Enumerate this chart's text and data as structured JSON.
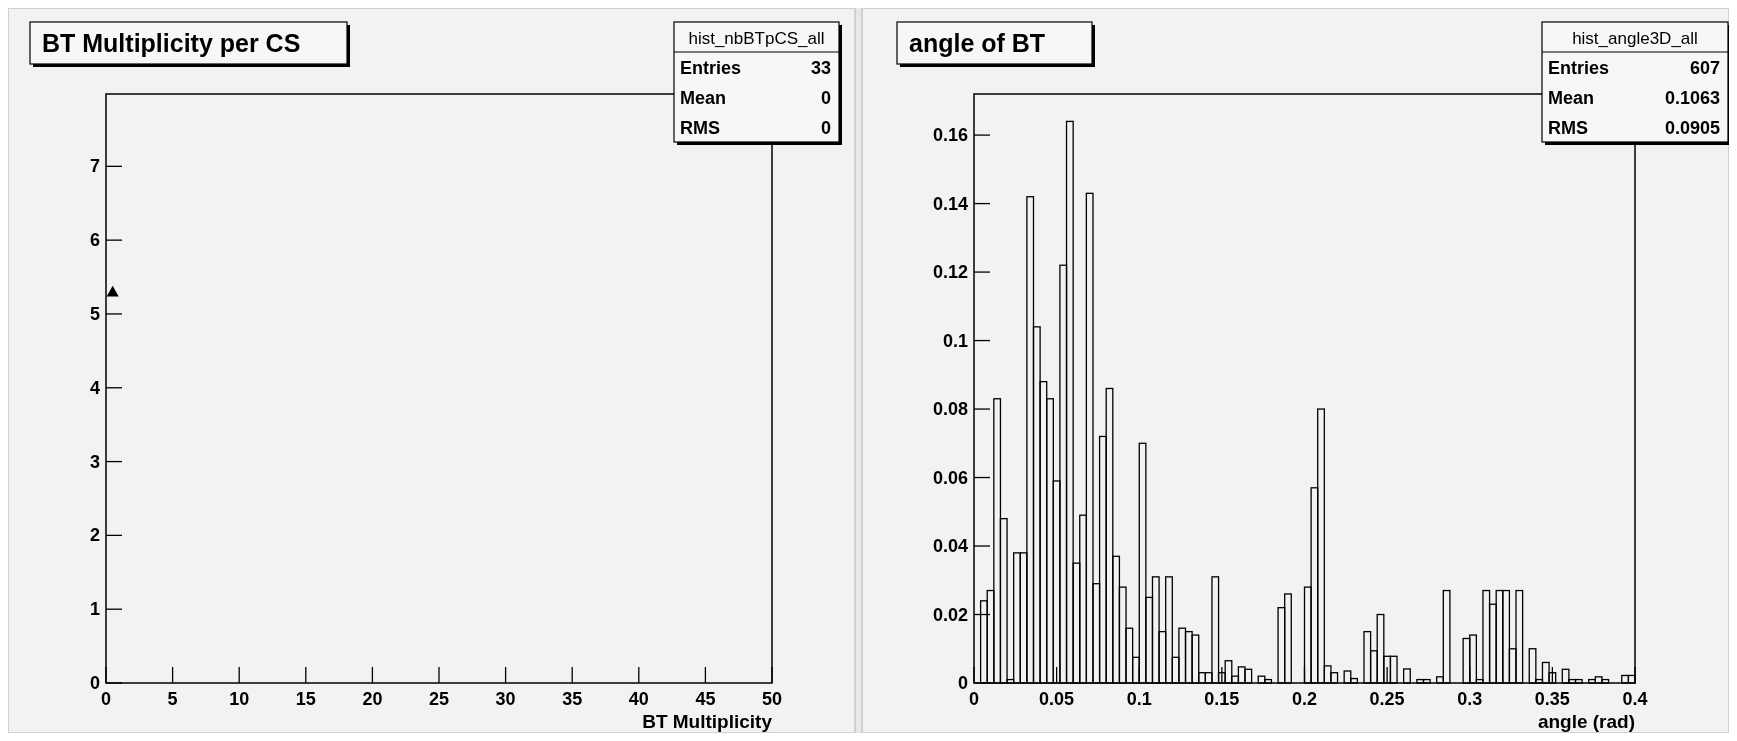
{
  "chart_data": [
    {
      "type": "scatter",
      "title": "BT Multiplicity per CS",
      "xlabel": "BT Multiplicity",
      "annotations": [
        "hist_nbBTpCS_all",
        "Entries 33",
        "Mean 0",
        "RMS 0"
      ],
      "x": [
        0.5
      ],
      "series": [
        {
          "color": "#000000",
          "values": [
            5.3
          ]
        }
      ],
      "marker": "triangle",
      "xlim": [
        0,
        50
      ],
      "xticks": [
        0,
        5,
        10,
        15,
        20,
        25,
        30,
        35,
        40,
        45,
        50
      ],
      "ylim": [
        0,
        7.98
      ],
      "yticks": [
        0,
        1,
        2,
        3,
        4,
        5,
        6,
        7
      ],
      "grid": false
    },
    {
      "type": "histogram",
      "title": "angle of BT",
      "xlabel": "angle (rad)",
      "annotations": [
        "hist_angle3D_all",
        "Entries 607",
        "Mean 0.1063",
        "RMS 0.0905"
      ],
      "color": "#000000",
      "bins": [
        0,
        0.004,
        0.008,
        0.012,
        0.016,
        0.02,
        0.024,
        0.028,
        0.032,
        0.036,
        0.04,
        0.044,
        0.048,
        0.052,
        0.056,
        0.06,
        0.064,
        0.068,
        0.072,
        0.076,
        0.08,
        0.084,
        0.088,
        0.092,
        0.096,
        0.1,
        0.104,
        0.108,
        0.112,
        0.116,
        0.12,
        0.124,
        0.128,
        0.132,
        0.136,
        0.14,
        0.144,
        0.148,
        0.152,
        0.156,
        0.16,
        0.164,
        0.168,
        0.172,
        0.176,
        0.18,
        0.184,
        0.188,
        0.192,
        0.196,
        0.2,
        0.204,
        0.208,
        0.212,
        0.216,
        0.22,
        0.224,
        0.228,
        0.232,
        0.236,
        0.24,
        0.244,
        0.248,
        0.252,
        0.256,
        0.26,
        0.264,
        0.268,
        0.272,
        0.276,
        0.28,
        0.284,
        0.288,
        0.292,
        0.296,
        0.3,
        0.304,
        0.308,
        0.312,
        0.316,
        0.32,
        0.324,
        0.328,
        0.332,
        0.336,
        0.34,
        0.344,
        0.348,
        0.352,
        0.356,
        0.36,
        0.364,
        0.368,
        0.372,
        0.376,
        0.38,
        0.384,
        0.388,
        0.392,
        0.396,
        0.4
      ],
      "values": [
        0,
        0.024,
        0.027,
        0.083,
        0.048,
        0.001,
        0.038,
        0.038,
        0.142,
        0.104,
        0.088,
        0.083,
        0.059,
        0.122,
        0.164,
        0.035,
        0.049,
        0.143,
        0.029,
        0.072,
        0.086,
        0.037,
        0.028,
        0.016,
        0.0075,
        0.07,
        0.025,
        0.031,
        0.015,
        0.031,
        0.0075,
        0.016,
        0.015,
        0.014,
        0.003,
        0.003,
        0.031,
        0.003,
        0.0065,
        0.002,
        0.0047,
        0.004,
        0,
        0.002,
        0.001,
        0,
        0.022,
        0.026,
        0,
        0,
        0.028,
        0.057,
        0.08,
        0.005,
        0.003,
        0,
        0.0035,
        0.0013,
        0,
        0.015,
        0.0094,
        0.02,
        0.0078,
        0.0078,
        0,
        0.0041,
        0,
        0.001,
        0.001,
        0,
        0.0018,
        0.027,
        0,
        0,
        0.013,
        0.014,
        0.001,
        0.027,
        0.023,
        0.027,
        0.027,
        0.01,
        0.027,
        0,
        0.01,
        0.001,
        0.006,
        0.003,
        0,
        0.004,
        0.001,
        0.001,
        0,
        0.001,
        0.0018,
        0.001,
        0,
        0,
        0.0022,
        0.0022
      ],
      "xlim": [
        0,
        0.4
      ],
      "xticks": [
        0,
        0.05,
        0.1,
        0.15,
        0.2,
        0.25,
        0.3,
        0.35,
        0.4
      ],
      "ylim": [
        0,
        0.172
      ],
      "yticks": [
        0,
        0.02,
        0.04,
        0.06,
        0.08,
        0.1,
        0.12,
        0.14,
        0.16
      ],
      "grid": false
    }
  ]
}
